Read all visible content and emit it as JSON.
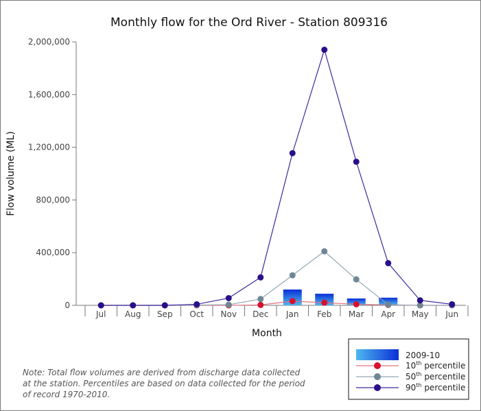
{
  "chart_data": {
    "type": "bar",
    "title": "Monthly flow for the Ord River - Station 809316",
    "xlabel": "Month",
    "ylabel": "Flow volume (ML)",
    "ylim": [
      0,
      2000000
    ],
    "yticks": [
      "0",
      "400,000",
      "800,000",
      "1,200,000",
      "1,600,000",
      "2,000,000"
    ],
    "ytick_values": [
      0,
      400000,
      800000,
      1200000,
      1600000,
      2000000
    ],
    "categories": [
      "Jul",
      "Aug",
      "Sep",
      "Oct",
      "Nov",
      "Dec",
      "Jan",
      "Feb",
      "Mar",
      "Apr",
      "May",
      "Jun"
    ],
    "bars": {
      "name": "2009-10",
      "values": [
        0,
        0,
        0,
        0,
        0,
        0,
        120000,
        88000,
        52000,
        58000,
        0,
        0
      ],
      "color_top": "#0a2fd6",
      "color_bottom": "#4fb8ee"
    },
    "series": [
      {
        "name": "10th percentile",
        "sup": "th",
        "prefix": "10",
        "suffix": " percentile",
        "color": "#d8112e",
        "line_color": "#e0707e",
        "values": [
          0,
          0,
          0,
          0,
          0,
          3000,
          32000,
          20000,
          8000,
          3000,
          0,
          0
        ]
      },
      {
        "name": "50th percentile",
        "sup": "th",
        "prefix": "50",
        "suffix": " percentile",
        "color": "#6e8796",
        "line_color": "#93a7b3",
        "values": [
          0,
          0,
          0,
          2000,
          5000,
          48000,
          228000,
          410000,
          197000,
          5000,
          0,
          0
        ]
      },
      {
        "name": "90th percentile",
        "sup": "th",
        "prefix": "90",
        "suffix": " percentile",
        "color": "#2a0f8a",
        "line_color": "#3a2aa0",
        "values": [
          0,
          0,
          0,
          8000,
          55000,
          212000,
          1155000,
          1940000,
          1090000,
          320000,
          38000,
          8000
        ]
      }
    ],
    "legend_position": "bottom-right",
    "grid": false
  },
  "note": {
    "lines": [
      "Note: Total flow volumes are derived from discharge data collected",
      "at the station. Percentiles are based on data collected for the period",
      "of record 1970-2010."
    ]
  }
}
